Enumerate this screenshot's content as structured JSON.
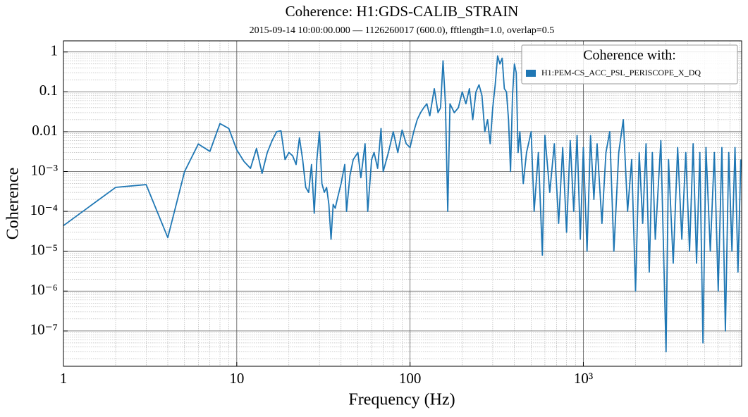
{
  "chart_data": {
    "type": "line",
    "title": "Coherence: H1:GDS-CALIB_STRAIN",
    "subtitle": "2015-09-14 10:00:00.000 — 1126260017 (600.0), fftlength=1.0, overlap=0.5",
    "x_label": "Frequency (Hz)",
    "y_label": "Coherence",
    "xscale": "log",
    "yscale": "log",
    "grid": true,
    "legend": "upper right",
    "legend_title": "Coherence with:",
    "xlim": [
      1,
      8192
    ],
    "ylim": [
      1.3e-08,
      1.9
    ],
    "xticks": [
      1,
      10,
      100,
      {
        "value": 1000,
        "label": "10³"
      }
    ],
    "yticks": [
      1,
      0.1,
      0.01,
      {
        "value": 0.001,
        "label": "10⁻³"
      },
      {
        "value": 0.0001,
        "label": "10⁻⁴"
      },
      {
        "value": 1e-05,
        "label": "10⁻⁵"
      },
      {
        "value": 1e-06,
        "label": "10⁻⁶"
      },
      {
        "value": 1e-07,
        "label": "10⁻⁷"
      }
    ],
    "x": [
      1,
      2,
      3,
      4,
      5,
      6,
      7,
      8,
      9,
      10,
      11,
      12,
      13,
      14,
      15,
      16,
      17,
      18,
      19,
      20,
      21,
      22,
      23,
      24,
      25,
      26,
      27,
      28,
      29,
      30,
      31,
      32,
      33,
      34,
      35,
      36,
      37,
      38,
      40,
      42,
      43,
      45,
      47,
      50,
      52,
      55,
      57,
      60,
      62,
      65,
      68,
      70,
      75,
      80,
      85,
      90,
      95,
      100,
      105,
      110,
      115,
      120,
      125,
      130,
      138,
      145,
      150,
      155,
      160,
      165,
      170,
      180,
      190,
      200,
      210,
      220,
      230,
      240,
      250,
      260,
      270,
      280,
      290,
      300,
      310,
      320,
      330,
      340,
      350,
      360,
      370,
      380,
      390,
      400,
      410,
      420,
      430,
      450,
      470,
      500,
      520,
      550,
      580,
      600,
      640,
      680,
      720,
      760,
      800,
      840,
      880,
      920,
      960,
      1000,
      1050,
      1100,
      1150,
      1200,
      1280,
      1350,
      1420,
      1500,
      1600,
      1700,
      1800,
      1900,
      2000,
      2100,
      2200,
      2300,
      2400,
      2500,
      2600,
      2800,
      3000,
      3100,
      3300,
      3500,
      3700,
      3900,
      4100,
      4300,
      4500,
      4700,
      4900,
      5100,
      5400,
      5700,
      6000,
      6300,
      6600,
      6900,
      7200,
      7500,
      7800,
      8100
    ],
    "series": [
      {
        "name": "H1:PEM-CS_ACC_PSL_PERISCOPE_X_DQ",
        "color": "#1f77b4",
        "values": [
          4.4e-05,
          0.0004,
          0.00047,
          2.2e-05,
          0.001,
          0.0049,
          0.0032,
          0.016,
          0.012,
          0.0035,
          0.0018,
          0.0012,
          0.0038,
          0.0009,
          0.003,
          0.006,
          0.01,
          0.0105,
          0.002,
          0.003,
          0.0025,
          0.0015,
          0.007,
          0.002,
          0.0004,
          0.0003,
          0.0015,
          9e-05,
          0.002,
          0.01,
          0.0005,
          0.0003,
          0.0004,
          0.00015,
          2e-05,
          0.00015,
          0.00012,
          0.0002,
          0.0005,
          0.0015,
          0.0001,
          0.0008,
          0.002,
          0.003,
          0.0007,
          0.005,
          0.0001,
          0.002,
          0.003,
          0.0012,
          0.012,
          0.001,
          0.003,
          0.01,
          0.003,
          0.011,
          0.005,
          0.004,
          0.01,
          0.02,
          0.03,
          0.04,
          0.05,
          0.025,
          0.12,
          0.03,
          0.04,
          0.6,
          0.05,
          0.0001,
          0.05,
          0.03,
          0.04,
          0.1,
          0.05,
          0.12,
          0.02,
          0.1,
          0.15,
          0.08,
          0.01,
          0.02,
          0.005,
          0.04,
          0.15,
          0.8,
          0.5,
          0.7,
          0.12,
          0.1,
          0.02,
          0.001,
          0.08,
          0.5,
          0.3,
          0.003,
          0.01,
          0.0005,
          0.003,
          0.01,
          0.0001,
          0.003,
          8e-06,
          0.008,
          0.0003,
          0.005,
          5e-05,
          0.004,
          3e-05,
          0.006,
          0.0001,
          0.008,
          2e-05,
          0.004,
          1e-05,
          0.008,
          0.0002,
          0.005,
          5e-05,
          0.003,
          0.01,
          1e-05,
          0.003,
          0.02,
          0.0001,
          0.002,
          1e-06,
          0.003,
          5e-05,
          0.005,
          3e-06,
          0.003,
          2e-05,
          0.006,
          3e-08,
          0.002,
          5e-06,
          0.004,
          2e-05,
          0.003,
          1e-05,
          0.005,
          5e-06,
          0.003,
          5e-08,
          0.004,
          1e-05,
          0.003,
          1e-06,
          0.004,
          1e-07,
          0.003,
          1e-05,
          0.004,
          3e-06,
          0.002
        ]
      }
    ]
  }
}
